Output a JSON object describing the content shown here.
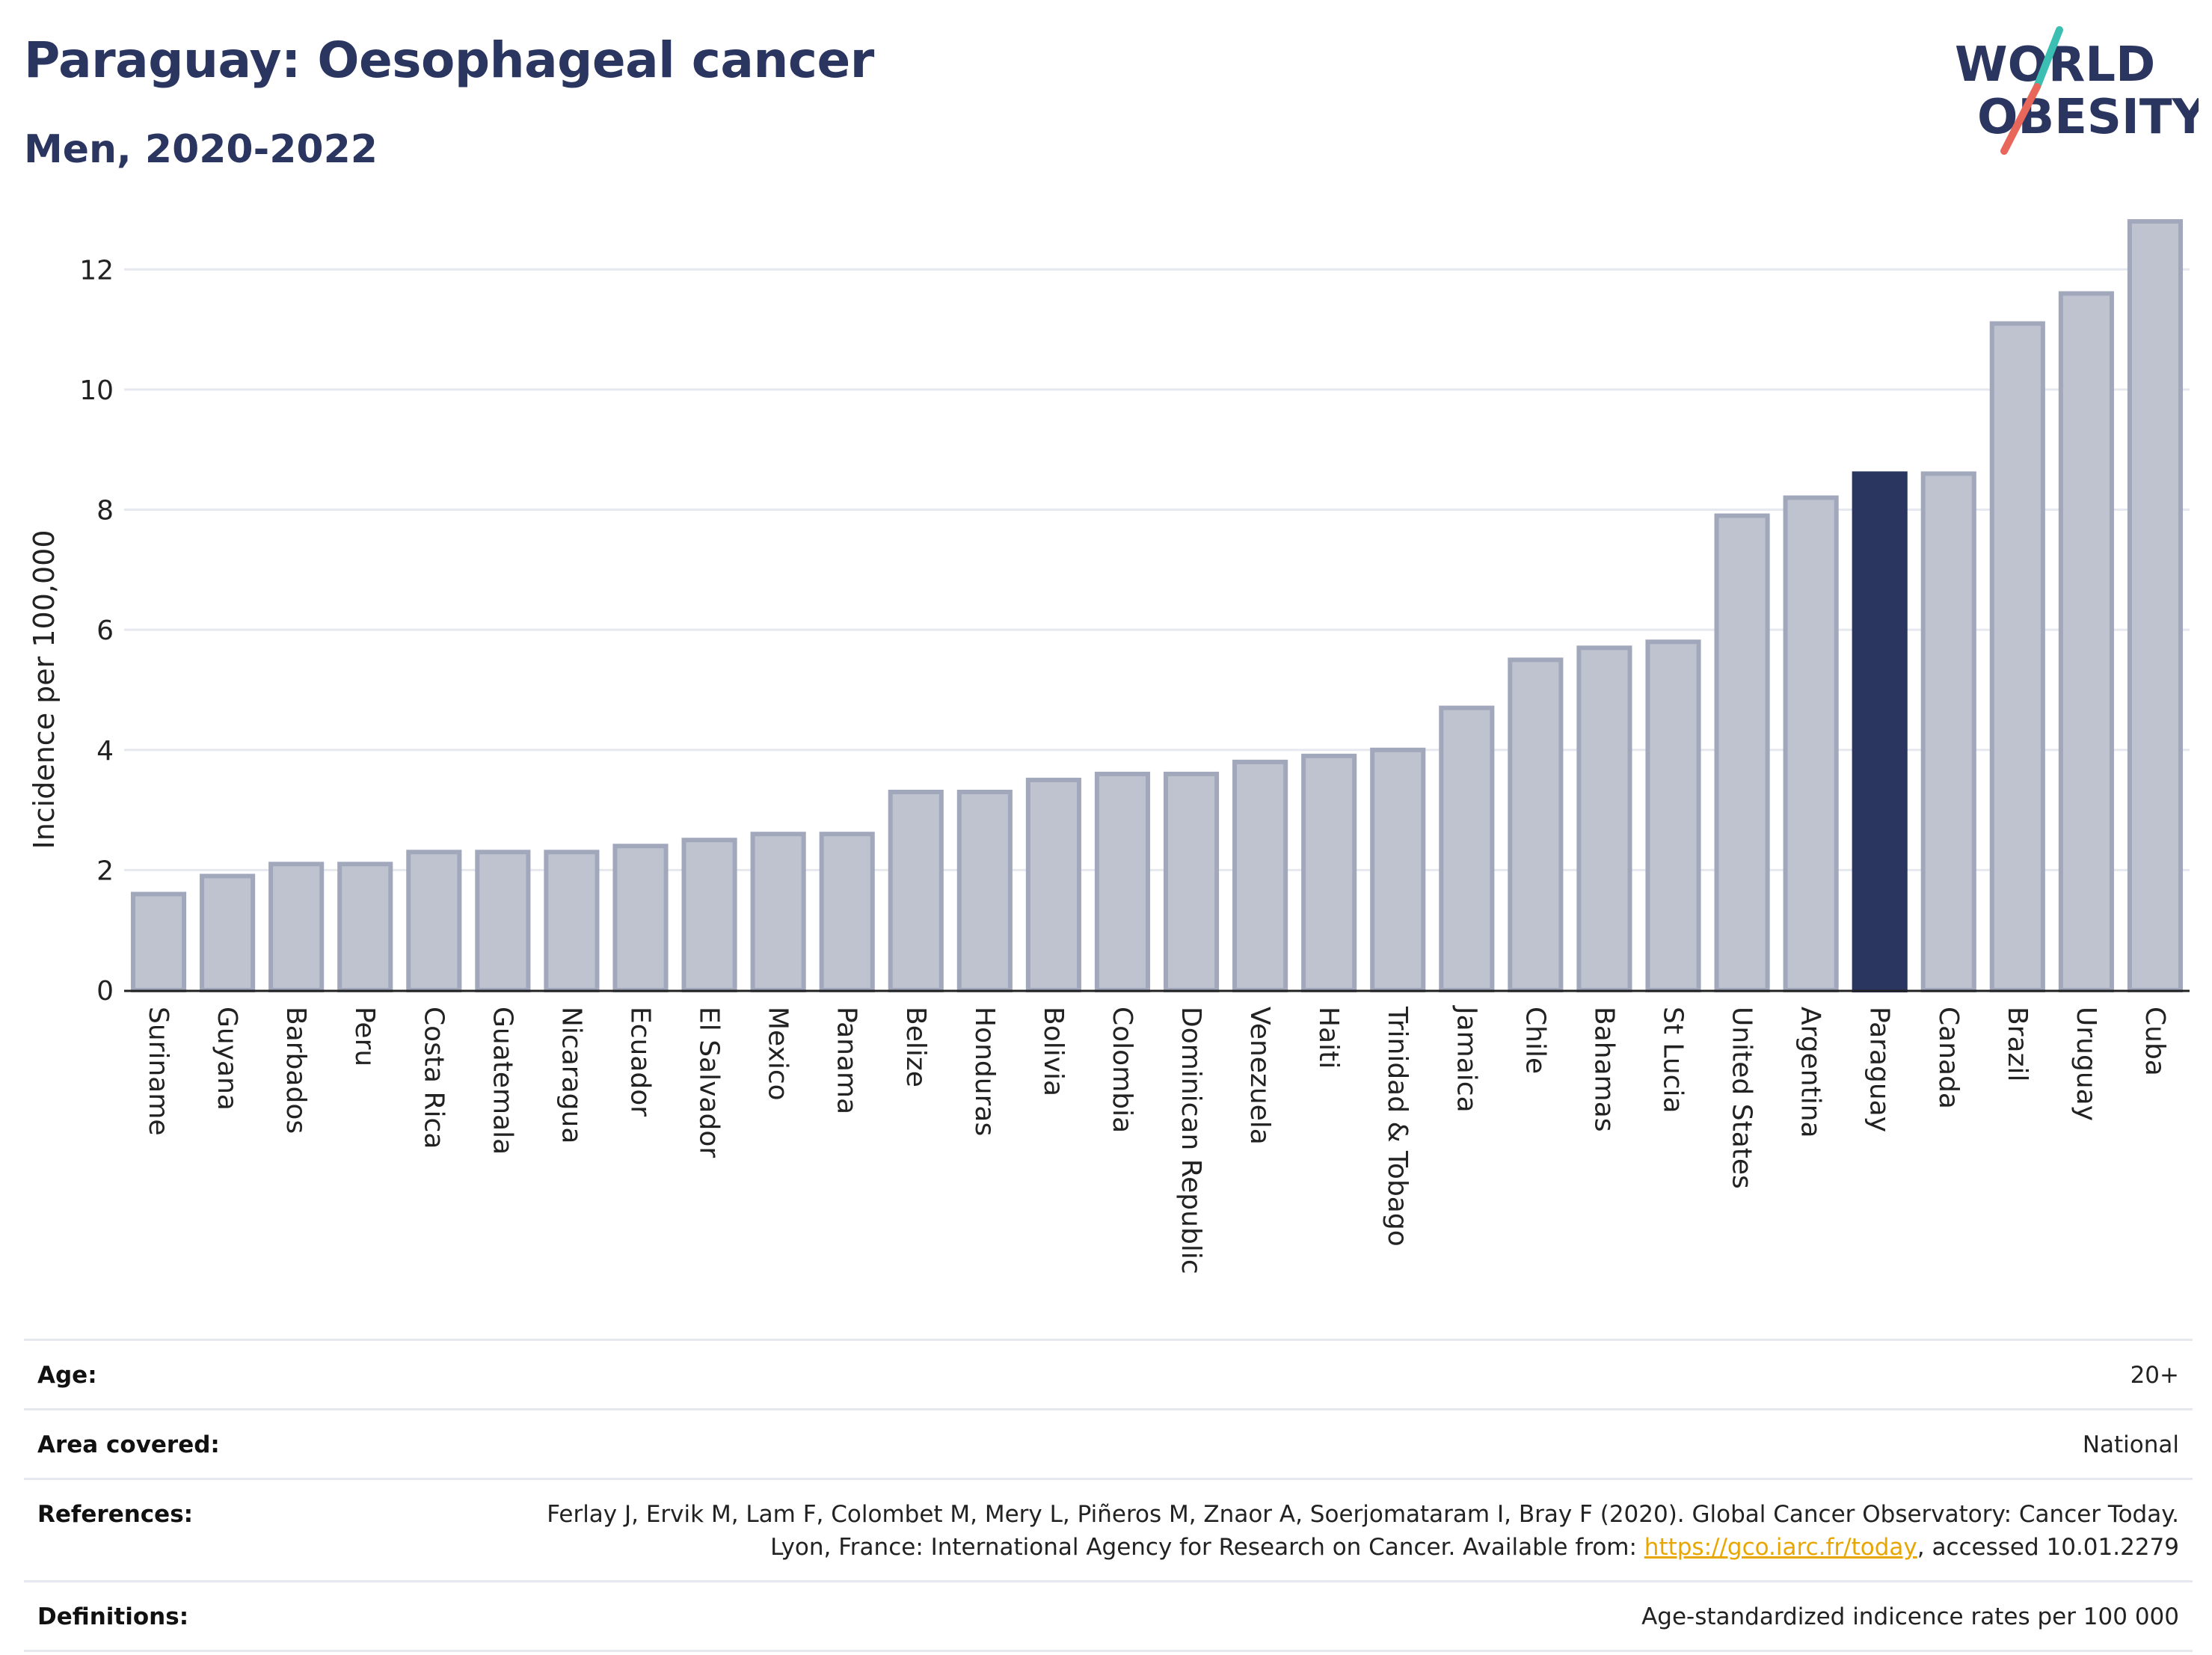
{
  "header": {
    "title": "Paraguay: Oesophageal cancer",
    "subtitle": "Men, 2020-2022"
  },
  "logo": {
    "line1": "WORLD",
    "line2": "OBESITY",
    "accent_teal": "#3bbfb2",
    "accent_coral": "#e8665a",
    "text_color": "#2a3560"
  },
  "colors": {
    "bar_default_fill": "#bfc3cf",
    "bar_default_stroke": "#a2a8bb",
    "bar_highlight": "#2a3560",
    "grid": "#e6e8ef",
    "axis": "#222222"
  },
  "chart_data": {
    "type": "bar",
    "ylabel": "Incidence per 100,000",
    "xlabel": "",
    "ylim": [
      0,
      13
    ],
    "yticks": [
      0,
      2,
      4,
      6,
      8,
      10,
      12
    ],
    "grid": true,
    "highlight": "Paraguay",
    "categories": [
      "Suriname",
      "Guyana",
      "Barbados",
      "Peru",
      "Costa Rica",
      "Guatemala",
      "Nicaragua",
      "Ecuador",
      "El Salvador",
      "Mexico",
      "Panama",
      "Belize",
      "Honduras",
      "Bolivia",
      "Colombia",
      "Dominican Republic",
      "Venezuela",
      "Haiti",
      "Trinidad & Tobago",
      "Jamaica",
      "Chile",
      "Bahamas",
      "St Lucia",
      "United States",
      "Argentina",
      "Paraguay",
      "Canada",
      "Brazil",
      "Uruguay",
      "Cuba"
    ],
    "values": [
      1.6,
      1.9,
      2.1,
      2.1,
      2.3,
      2.3,
      2.3,
      2.4,
      2.5,
      2.6,
      2.6,
      3.3,
      3.3,
      3.5,
      3.6,
      3.6,
      3.8,
      3.9,
      4.0,
      4.7,
      5.5,
      5.7,
      5.8,
      7.9,
      8.2,
      8.6,
      8.6,
      11.1,
      11.6,
      12.8
    ]
  },
  "meta": {
    "age": {
      "label": "Age:",
      "value": "20+"
    },
    "area": {
      "label": "Area covered:",
      "value": "National"
    },
    "references": {
      "label": "References:",
      "text_before": "Ferlay J, Ervik M, Lam F, Colombet M, Mery L, Piñeros M, Znaor A, Soerjomataram I, Bray F (2020). Global Cancer Observatory: Cancer Today. Lyon, France: International Agency for Research on Cancer. Available from: ",
      "link": "https://gco.iarc.fr/today",
      "text_after": ", accessed 10.01.2279"
    },
    "definitions": {
      "label": "Definitions:",
      "value": "Age-standardized indicence rates per 100 000"
    }
  }
}
